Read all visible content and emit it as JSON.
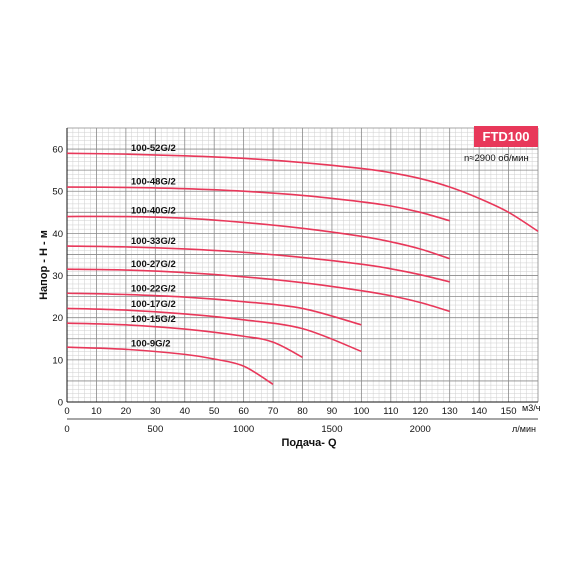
{
  "chart_data": {
    "type": "line",
    "title": "FTD100",
    "subtitle": "n≈2900 об/мин",
    "xlabel": "Подача- Q",
    "ylabel": "Напор - Н - м",
    "x_unit": "м3/ч",
    "x2_unit": "л/мин",
    "xlim": [
      0,
      160
    ],
    "ylim": [
      0,
      65
    ],
    "x_ticks": [
      0,
      10,
      20,
      30,
      40,
      50,
      60,
      70,
      80,
      90,
      100,
      110,
      120,
      130,
      140,
      150
    ],
    "x2_ticks": [
      0,
      500,
      1000,
      1500,
      2000
    ],
    "y_ticks": [
      0,
      10,
      20,
      30,
      40,
      50,
      60
    ],
    "grid": true,
    "line_color": "#e8385a",
    "series": [
      {
        "name": "100-52G/2",
        "x": [
          0,
          20,
          40,
          60,
          80,
          100,
          110,
          120,
          130,
          140,
          150,
          160
        ],
        "y": [
          59,
          58.8,
          58.4,
          57.8,
          56.8,
          55.4,
          54.4,
          53,
          51,
          48.3,
          45,
          40.5
        ]
      },
      {
        "name": "100-48G/2",
        "x": [
          0,
          20,
          40,
          60,
          80,
          100,
          110,
          120,
          130
        ],
        "y": [
          51,
          50.9,
          50.6,
          50,
          49,
          47.5,
          46.5,
          45,
          43
        ]
      },
      {
        "name": "100-40G/2",
        "x": [
          0,
          20,
          40,
          60,
          80,
          100,
          110,
          120,
          130
        ],
        "y": [
          44,
          44,
          43.6,
          42.6,
          41.2,
          39.3,
          38,
          36.3,
          34
        ]
      },
      {
        "name": "100-33G/2",
        "x": [
          0,
          20,
          40,
          60,
          80,
          100,
          110,
          120,
          130
        ],
        "y": [
          37,
          36.8,
          36.3,
          35.5,
          34.3,
          32.7,
          31.6,
          30.2,
          28.5
        ]
      },
      {
        "name": "100-27G/2",
        "x": [
          0,
          20,
          40,
          60,
          80,
          100,
          110,
          120,
          130
        ],
        "y": [
          31.5,
          31.3,
          30.7,
          29.7,
          28.3,
          26.4,
          25.2,
          23.6,
          21.5
        ]
      },
      {
        "name": "100-22G/2",
        "x": [
          0,
          20,
          40,
          60,
          80,
          100
        ],
        "y": [
          25.8,
          25.5,
          24.9,
          23.8,
          22.2,
          18.3
        ]
      },
      {
        "name": "100-17G/2",
        "x": [
          0,
          20,
          40,
          60,
          80,
          100
        ],
        "y": [
          22.2,
          21.8,
          20.9,
          19.5,
          17.4,
          12
        ]
      },
      {
        "name": "100-15G/2",
        "x": [
          0,
          20,
          40,
          60,
          70,
          80
        ],
        "y": [
          18.7,
          18.3,
          17.3,
          15.6,
          14.2,
          10.6
        ]
      },
      {
        "name": "100-9G/2",
        "x": [
          0,
          20,
          40,
          50,
          60,
          70
        ],
        "y": [
          13,
          12.5,
          11.3,
          10.2,
          8.5,
          4.2
        ]
      }
    ]
  }
}
